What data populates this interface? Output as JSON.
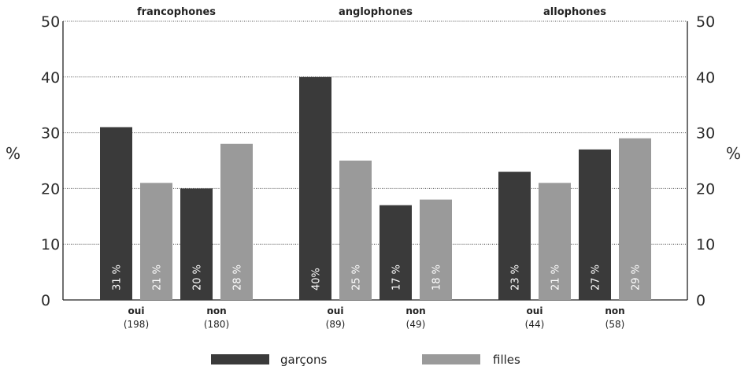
{
  "chart_data": {
    "type": "bar",
    "unit_label": "%",
    "ylim": [
      0,
      50
    ],
    "yticks": [
      0,
      10,
      20,
      30,
      40,
      50
    ],
    "grid": true,
    "colors": {
      "garcons": "#3a3a3a",
      "filles": "#9a9a9a"
    },
    "legend": {
      "placement": "bottom",
      "items": [
        {
          "key": "garcons",
          "label": "garçons"
        },
        {
          "key": "filles",
          "label": "filles"
        }
      ]
    },
    "groups": [
      {
        "title": "francophones",
        "categories": [
          {
            "label": "oui",
            "count": "(198)",
            "garcons": 31,
            "filles": 21,
            "garcons_label": "31 %",
            "filles_label": "21 %"
          },
          {
            "label": "non",
            "count": "(180)",
            "garcons": 20,
            "filles": 28,
            "garcons_label": "20 %",
            "filles_label": "28 %"
          }
        ]
      },
      {
        "title": "anglophones",
        "categories": [
          {
            "label": "oui",
            "count": "(89)",
            "garcons": 40,
            "filles": 25,
            "garcons_label": "40%",
            "filles_label": "25 %"
          },
          {
            "label": "non",
            "count": "(49)",
            "garcons": 17,
            "filles": 18,
            "garcons_label": "17 %",
            "filles_label": "18 %"
          }
        ]
      },
      {
        "title": "allophones",
        "categories": [
          {
            "label": "oui",
            "count": "(44)",
            "garcons": 23,
            "filles": 21,
            "garcons_label": "23 %",
            "filles_label": "21 %"
          },
          {
            "label": "non",
            "count": "(58)",
            "garcons": 27,
            "filles": 29,
            "garcons_label": "27 %",
            "filles_label": "29 %"
          }
        ]
      }
    ]
  }
}
